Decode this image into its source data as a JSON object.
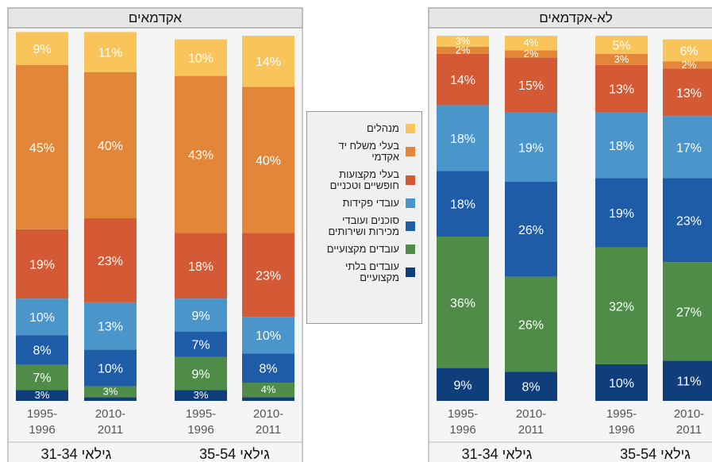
{
  "legend": {
    "entries": [
      {
        "name": "מנהלים",
        "color": "#f9c55a"
      },
      {
        "name": "בעלי משלח יד אקדמי",
        "color": "#e2873a"
      },
      {
        "name": "בעלי מקצועות חופשיים וטכניים",
        "color": "#d45a36"
      },
      {
        "name": "עובדי פקידות",
        "color": "#4a95c9"
      },
      {
        "name": "סוכנים ועובדי מכירות ושירותים",
        "color": "#1f5ca8"
      },
      {
        "name": "עובדים מקצועיים",
        "color": "#4e8c48"
      },
      {
        "name": "עובדים בלתי מקצועיים",
        "color": "#103e7a"
      }
    ]
  },
  "chart_data": [
    {
      "type": "bar",
      "stacked": true,
      "title": "אקדמאים",
      "categories": [
        "1995-1996",
        "2010-2011",
        "1995-1996",
        "2010-2011"
      ],
      "groups": [
        "גילאי 31-34",
        "גילאי 35-54"
      ],
      "ylim": [
        0,
        100
      ],
      "series": [
        {
          "values": [
            9,
            11,
            10,
            14
          ],
          "value_labels": [
            "9%",
            "11%",
            "10%",
            "14%"
          ]
        },
        {
          "values": [
            45,
            40,
            43,
            40
          ],
          "value_labels": [
            "45%",
            "40%",
            "43%",
            "40%"
          ]
        },
        {
          "values": [
            19,
            23,
            18,
            23
          ],
          "value_labels": [
            "19%",
            "23%",
            "18%",
            "23%"
          ]
        },
        {
          "values": [
            10,
            13,
            9,
            10
          ],
          "value_labels": [
            "10%",
            "13%",
            "9%",
            "10%"
          ]
        },
        {
          "values": [
            8,
            10,
            7,
            8
          ],
          "value_labels": [
            "8%",
            "10%",
            "7%",
            "8%"
          ]
        },
        {
          "values": [
            7,
            3,
            9,
            4
          ],
          "value_labels": [
            "7%",
            "3%",
            "9%",
            "4%"
          ]
        },
        {
          "values": [
            3,
            1,
            3,
            1
          ],
          "value_labels": [
            "3%",
            null,
            "3%",
            null
          ]
        }
      ]
    },
    {
      "type": "bar",
      "stacked": true,
      "title": "לא-אקדמאים",
      "categories": [
        "1995-1996",
        "2010-2011",
        "1995-1996",
        "2010-2011"
      ],
      "groups": [
        "גילאי 31-34",
        "גילאי 35-54"
      ],
      "ylim": [
        0,
        100
      ],
      "series": [
        {
          "values": [
            3,
            4,
            5,
            6
          ],
          "value_labels": [
            "3%",
            "4%",
            "5%",
            "6%"
          ]
        },
        {
          "values": [
            2,
            2,
            3,
            2
          ],
          "value_labels": [
            "2%",
            "2%",
            "3%",
            "2%"
          ]
        },
        {
          "values": [
            14,
            15,
            13,
            13
          ],
          "value_labels": [
            "14%",
            "15%",
            "13%",
            "13%"
          ]
        },
        {
          "values": [
            18,
            19,
            18,
            17
          ],
          "value_labels": [
            "18%",
            "19%",
            "18%",
            "17%"
          ]
        },
        {
          "values": [
            18,
            26,
            19,
            23
          ],
          "value_labels": [
            "18%",
            "26%",
            "19%",
            "23%"
          ]
        },
        {
          "values": [
            36,
            26,
            32,
            27
          ],
          "value_labels": [
            "36%",
            "26%",
            "32%",
            "27%"
          ]
        },
        {
          "values": [
            9,
            8,
            10,
            11
          ],
          "value_labels": [
            "9%",
            "8%",
            "10%",
            "11%"
          ]
        }
      ]
    }
  ]
}
